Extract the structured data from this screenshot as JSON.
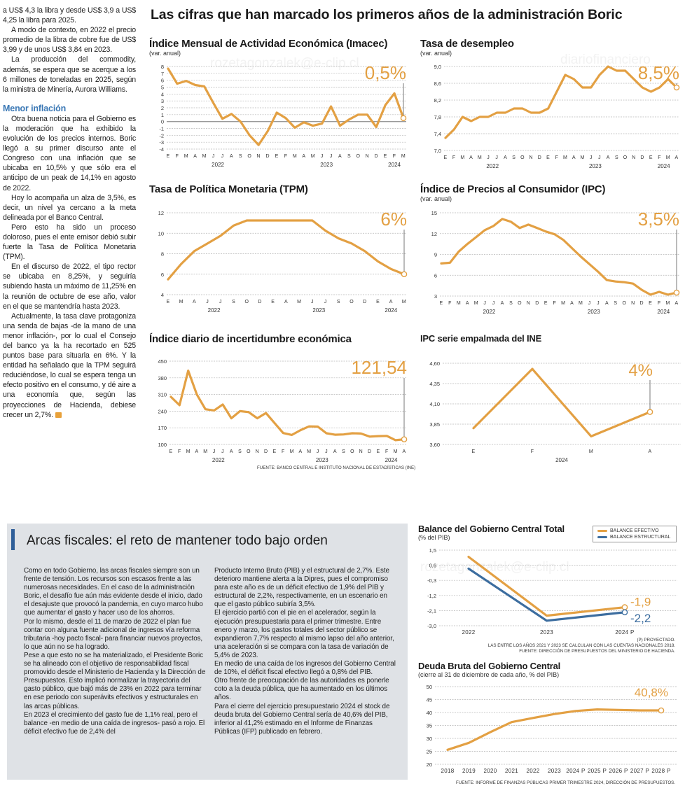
{
  "left_column": {
    "paragraphs_top": [
      "a US$ 4,3 la libra y desde US$ 3,9 a US$ 4,25 la libra para 2025.",
      "A modo de contexto, en 2022 el precio promedio de la libra de cobre fue de US$ 3,99 y de unos US$ 3,84 en 2023.",
      "La producción del commodity, además, se espera que se acerque a los 6 millones de toneladas en 2025, según la ministra de Minería, Aurora Williams."
    ],
    "subhead": "Menor inflación",
    "paragraphs_bottom": [
      "Otra buena noticia para el Gobierno es la moderación que ha exhibido la evolución de los precios internos. Boric llegó a su primer discurso ante el Congreso con una inflación que se ubicaba en 10,5% y que sólo era el anticipo de un peak de 14,1% en agosto de 2022.",
      "Hoy lo acompaña un alza de 3,5%, es decir, un nivel ya cercano a la meta delineada por el Banco Central.",
      "Pero esto ha sido un proceso doloroso, pues el ente emisor debió subir fuerte la Tasa de Política Monetaria (TPM).",
      "En el discurso de 2022, el tipo rector se ubicaba en 8,25%, y seguiría subiendo hasta un máximo de 11,25% en la reunión de octubre de ese año, valor en el que se mantendría hasta 2023.",
      "Actualmente, la tasa clave protagoniza una senda de bajas -de la mano de una menor inflación-, por lo cual el Consejo del banco ya la ha recortado en 525 puntos base para situarla en 6%. Y la entidad ha señalado que la TPM seguirá reduciéndose, lo cual se espera tenga un efecto positivo en el consumo, y dé aire a una economía que, según las proyecciones de Hacienda, debiese crecer un 2,7%."
    ]
  },
  "main_title": "Las cifras que han marcado los primeros años de la administración Boric",
  "watermarks": [
    "rozetagonzalek@e-clip.cl",
    "diariofinanciero"
  ],
  "colors": {
    "orange": "#e3a043",
    "blue": "#3c6d9f",
    "box_bg": "#dfe2e6",
    "accent_bar": "#2f5e98",
    "subhead": "#3b78b5"
  },
  "fiscal": {
    "heading": "Arcas fiscales: el reto de mantener todo bajo orden",
    "col1": [
      "Como en todo Gobierno, las arcas fiscales siempre son un frente de tensión. Los recursos son escasos frente a las numerosas necesidades. En el caso de la administración Boric, el desafío fue aún más evidente desde el inicio, dado el desajuste que provocó la pandemia, en cuyo marco hubo que aumentar el gasto y hacer uso de los ahorros.",
      "Por lo mismo, desde el 11 de marzo de 2022 el plan fue contar con alguna fuente adicional de ingresos vía reforma tributaria -hoy pacto fiscal- para financiar nuevos proyectos, lo que aún no se ha logrado.",
      "Pese a que esto no se ha materializado, el Presidente Boric se ha alineado con el objetivo de responsabilidad fiscal promovido desde el Ministerio de Hacienda y la Dirección de Presupuestos. Esto implicó normalizar la trayectoria del gasto público, que bajó más de 23% en 2022 para terminar en ese periodo con superávits efectivos y estructurales en las arcas públicas.",
      "En 2023 el crecimiento del gasto fue de 1,1% real, pero el balance -en medio de una caída de ingresos- pasó a rojo. El déficit efectivo fue de 2,4% del"
    ],
    "col2": [
      "Producto Interno Bruto (PIB) y el estructural de 2,7%. Este deterioro mantiene alerta a la Dipres, pues el compromiso para este año es de un déficit efectivo de 1,9% del PIB y estructural de 2,2%, respectivamente, en un escenario en que el gasto público subiría 3,5%.",
      "El ejercicio partió con el pie en el acelerador, según la ejecución presupuestaria para el primer trimestre. Entre enero y marzo, los gastos totales del sector público se expandieron 7,7% respecto al mismo lapso del año anterior, una aceleración si se compara con la tasa de variación de 5,4% de 2023.",
      "En medio de una caída de los ingresos del Gobierno Central de 10%, el déficit fiscal efectivo llegó a 0,8% del PIB.",
      "Otro frente de preocupación de las autoridades es ponerle coto a la deuda pública, que ha aumentado en los últimos años.",
      "Para el cierre del ejercicio presupuestario 2024 el stock de deuda bruta del Gobierno Central sería de 40,6% del PIB, inferior al 41,2% estimado en el Informe de Finanzas Públicas (IFP) publicado en febrero."
    ]
  },
  "source_top": "FUENTE: BANCO CENTRAL E INSTITUTO NACIONAL DE ESTADÍSTICAS (INE)",
  "chart_data": [
    {
      "id": "imacec",
      "type": "line",
      "title": "Índice Mensual de Actividad Económica (Imacec)",
      "subtitle": "(var. anual)",
      "categories": [
        "E",
        "F",
        "M",
        "A",
        "M",
        "J",
        "J",
        "A",
        "S",
        "O",
        "N",
        "D",
        "E",
        "F",
        "M",
        "A",
        "M",
        "J",
        "J",
        "A",
        "S",
        "O",
        "N",
        "D",
        "E",
        "F",
        "M"
      ],
      "years": [
        {
          "label": "2022",
          "from": 0,
          "to": 11
        },
        {
          "label": "2023",
          "from": 12,
          "to": 23
        },
        {
          "label": "2024",
          "from": 24,
          "to": 26
        }
      ],
      "values": [
        7.7,
        5.5,
        5.9,
        5.3,
        5.1,
        2.7,
        0.4,
        1.1,
        0.0,
        -2.0,
        -3.4,
        -1.4,
        1.3,
        0.5,
        -0.9,
        -0.1,
        -0.6,
        -0.3,
        2.2,
        -0.6,
        0.3,
        1.0,
        1.0,
        -0.8,
        2.4,
        4.1,
        0.5
      ],
      "yticks": [
        8,
        7,
        6,
        5,
        4,
        3,
        2,
        1,
        0,
        -1,
        -2,
        -3,
        -4
      ],
      "ylim": [
        -4,
        8
      ],
      "zero_line": true,
      "callout": "0,5%",
      "grid": true
    },
    {
      "id": "desempleo",
      "type": "line",
      "title": "Tasa de desempleo",
      "subtitle": "(var. anual)",
      "categories": [
        "E",
        "F",
        "M",
        "A",
        "M",
        "J",
        "J",
        "A",
        "S",
        "O",
        "N",
        "D",
        "E",
        "F",
        "M",
        "A",
        "M",
        "J",
        "J",
        "A",
        "S",
        "O",
        "N",
        "D",
        "E",
        "F",
        "M",
        "A"
      ],
      "years": [
        {
          "label": "2022",
          "from": 0,
          "to": 11
        },
        {
          "label": "2023",
          "from": 12,
          "to": 23
        },
        {
          "label": "2024",
          "from": 24,
          "to": 27
        }
      ],
      "values": [
        7.3,
        7.5,
        7.8,
        7.7,
        7.8,
        7.8,
        7.9,
        7.9,
        8.0,
        8.0,
        7.9,
        7.9,
        8.0,
        8.4,
        8.8,
        8.7,
        8.5,
        8.5,
        8.8,
        9.0,
        8.9,
        8.9,
        8.7,
        8.5,
        8.4,
        8.5,
        8.7,
        8.5
      ],
      "yticks": [
        "9,0",
        "8,6",
        "8,2",
        "7,8",
        "7,4",
        "7,0"
      ],
      "ytick_values": [
        9.0,
        8.6,
        8.2,
        7.8,
        7.4,
        7.0
      ],
      "ylim": [
        7.0,
        9.0
      ],
      "callout": "8,5%",
      "grid": true
    },
    {
      "id": "tpm",
      "type": "line",
      "title": "Tasa de Política Monetaria (TPM)",
      "subtitle": "",
      "categories": [
        "E",
        "M",
        "A",
        "J",
        "J",
        "S",
        "O",
        "D",
        "E",
        "A",
        "M",
        "J",
        "J",
        "S",
        "O",
        "D",
        "E",
        "A",
        "M"
      ],
      "years": [
        {
          "label": "2022",
          "from": 0,
          "to": 7
        },
        {
          "label": "2023",
          "from": 8,
          "to": 15
        },
        {
          "label": "2024",
          "from": 16,
          "to": 18
        }
      ],
      "values": [
        5.5,
        7.0,
        8.25,
        9.0,
        9.75,
        10.75,
        11.25,
        11.25,
        11.25,
        11.25,
        11.25,
        11.25,
        10.25,
        9.5,
        9.0,
        8.25,
        7.25,
        6.5,
        6.0
      ],
      "yticks": [
        12,
        10,
        8,
        6,
        4
      ],
      "ylim": [
        4,
        12
      ],
      "callout": "6%",
      "grid": true
    },
    {
      "id": "ipc",
      "type": "line",
      "title": "Índice de Precios al Consumidor (IPC)",
      "subtitle": "(var. anual)",
      "categories": [
        "E",
        "F",
        "M",
        "A",
        "M",
        "J",
        "J",
        "A",
        "S",
        "O",
        "N",
        "D",
        "E",
        "F",
        "M",
        "A",
        "M",
        "J",
        "J",
        "A",
        "S",
        "O",
        "N",
        "D",
        "E",
        "F",
        "M",
        "A"
      ],
      "years": [
        {
          "label": "2022",
          "from": 0,
          "to": 11
        },
        {
          "label": "2023",
          "from": 12,
          "to": 23
        },
        {
          "label": "2024",
          "from": 24,
          "to": 27
        }
      ],
      "values": [
        7.7,
        7.8,
        9.4,
        10.5,
        11.5,
        12.5,
        13.1,
        14.1,
        13.7,
        12.8,
        13.3,
        12.8,
        12.3,
        11.9,
        11.1,
        9.9,
        8.7,
        7.6,
        6.5,
        5.3,
        5.1,
        5.0,
        4.8,
        3.9,
        3.2,
        3.6,
        3.2,
        3.5
      ],
      "yticks": [
        15,
        12,
        9,
        6,
        3
      ],
      "ylim": [
        3,
        15
      ],
      "callout": "3,5%",
      "grid": true
    },
    {
      "id": "incertidumbre",
      "type": "line",
      "title": "Índice diario de incertidumbre económica",
      "subtitle": "",
      "categories": [
        "E",
        "F",
        "M",
        "A",
        "M",
        "J",
        "J",
        "A",
        "S",
        "O",
        "N",
        "D",
        "E",
        "F",
        "M",
        "A",
        "M",
        "J",
        "J",
        "A",
        "S",
        "O",
        "N",
        "D",
        "E",
        "F",
        "M",
        "A"
      ],
      "years": [
        {
          "label": "2022",
          "from": 0,
          "to": 11
        },
        {
          "label": "2023",
          "from": 12,
          "to": 23
        },
        {
          "label": "2024",
          "from": 24,
          "to": 27
        }
      ],
      "values": [
        300,
        265,
        410,
        310,
        248,
        243,
        268,
        210,
        240,
        236,
        210,
        232,
        190,
        148,
        140,
        160,
        176,
        175,
        147,
        141,
        142,
        147,
        146,
        133,
        135,
        136,
        118,
        121.54
      ],
      "yticks": [
        450,
        380,
        310,
        240,
        170,
        100
      ],
      "ylim": [
        100,
        450
      ],
      "callout": "121,54",
      "grid": true
    },
    {
      "id": "ipc_empalmada",
      "type": "line",
      "title": "IPC serie empalmada del INE",
      "subtitle": "",
      "categories": [
        "E",
        "F",
        "M",
        "A"
      ],
      "years": [
        {
          "label": "2024",
          "from": 0,
          "to": 3
        }
      ],
      "values": [
        3.8,
        4.53,
        3.7,
        4.0
      ],
      "yticks": [
        "4,60",
        "4,35",
        "4,10",
        "3,85",
        "3,60"
      ],
      "ytick_values": [
        4.6,
        4.35,
        4.1,
        3.85,
        3.6
      ],
      "ylim": [
        3.6,
        4.6
      ],
      "callout": "4%",
      "grid": true
    },
    {
      "id": "balance",
      "type": "line",
      "title": "Balance del Gobierno Central Total",
      "subtitle": "(% del PIB)",
      "categories": [
        "2022",
        "2023",
        "2024 P"
      ],
      "series": [
        {
          "name": "BALANCE EFECTIVO",
          "values": [
            1.1,
            -2.4,
            -1.9
          ],
          "color": "#e3a043",
          "label": "-1,9"
        },
        {
          "name": "BALANCE ESTRUCTURAL",
          "values": [
            0.4,
            -2.7,
            -2.2
          ],
          "color": "#3c6d9f",
          "label": "-2,2"
        }
      ],
      "yticks": [
        "1,5",
        "0,6",
        "-0,3",
        "-1,2",
        "-2,1",
        "-3,0"
      ],
      "ytick_values": [
        1.5,
        0.6,
        -0.3,
        -1.2,
        -2.1,
        -3.0
      ],
      "ylim": [
        -3.0,
        1.5
      ],
      "legend": "top-right",
      "grid": true,
      "notes": [
        "(P) PROYECTADO.",
        "LAS ENTRE LOS AÑOS 2021 Y 2023 SE CALCULAN  CON LAS CUENTAS NACIONALES 2018.",
        "FUENTE: DIRECCIÓN DE PRESUPUESTOS DEL MINISTERIO DE HACIENDA."
      ]
    },
    {
      "id": "deuda",
      "type": "line",
      "title": "Deuda Bruta del Gobierno Central",
      "subtitle": "(cierre al 31 de diciembre de cada año, % del PIB)",
      "categories": [
        "2018",
        "2019",
        "2020",
        "2021",
        "2022",
        "2023",
        "2024 P",
        "2025 P",
        "2026 P",
        "2027 P",
        "2028 P"
      ],
      "values": [
        25.6,
        28.3,
        32.4,
        36.3,
        37.9,
        39.4,
        40.6,
        41.2,
        41.0,
        40.8,
        40.8
      ],
      "yticks": [
        50,
        45,
        40,
        35,
        30,
        25,
        20
      ],
      "ylim": [
        20,
        50
      ],
      "callout": "40,8%",
      "grid": true,
      "notes": [
        "FUENTE: INFORME DE FINANZAS PÚBLICAS PRIMER TRIMESTRE 2024, DIRECCIÓN DE PRESUPUESTOS."
      ]
    }
  ]
}
